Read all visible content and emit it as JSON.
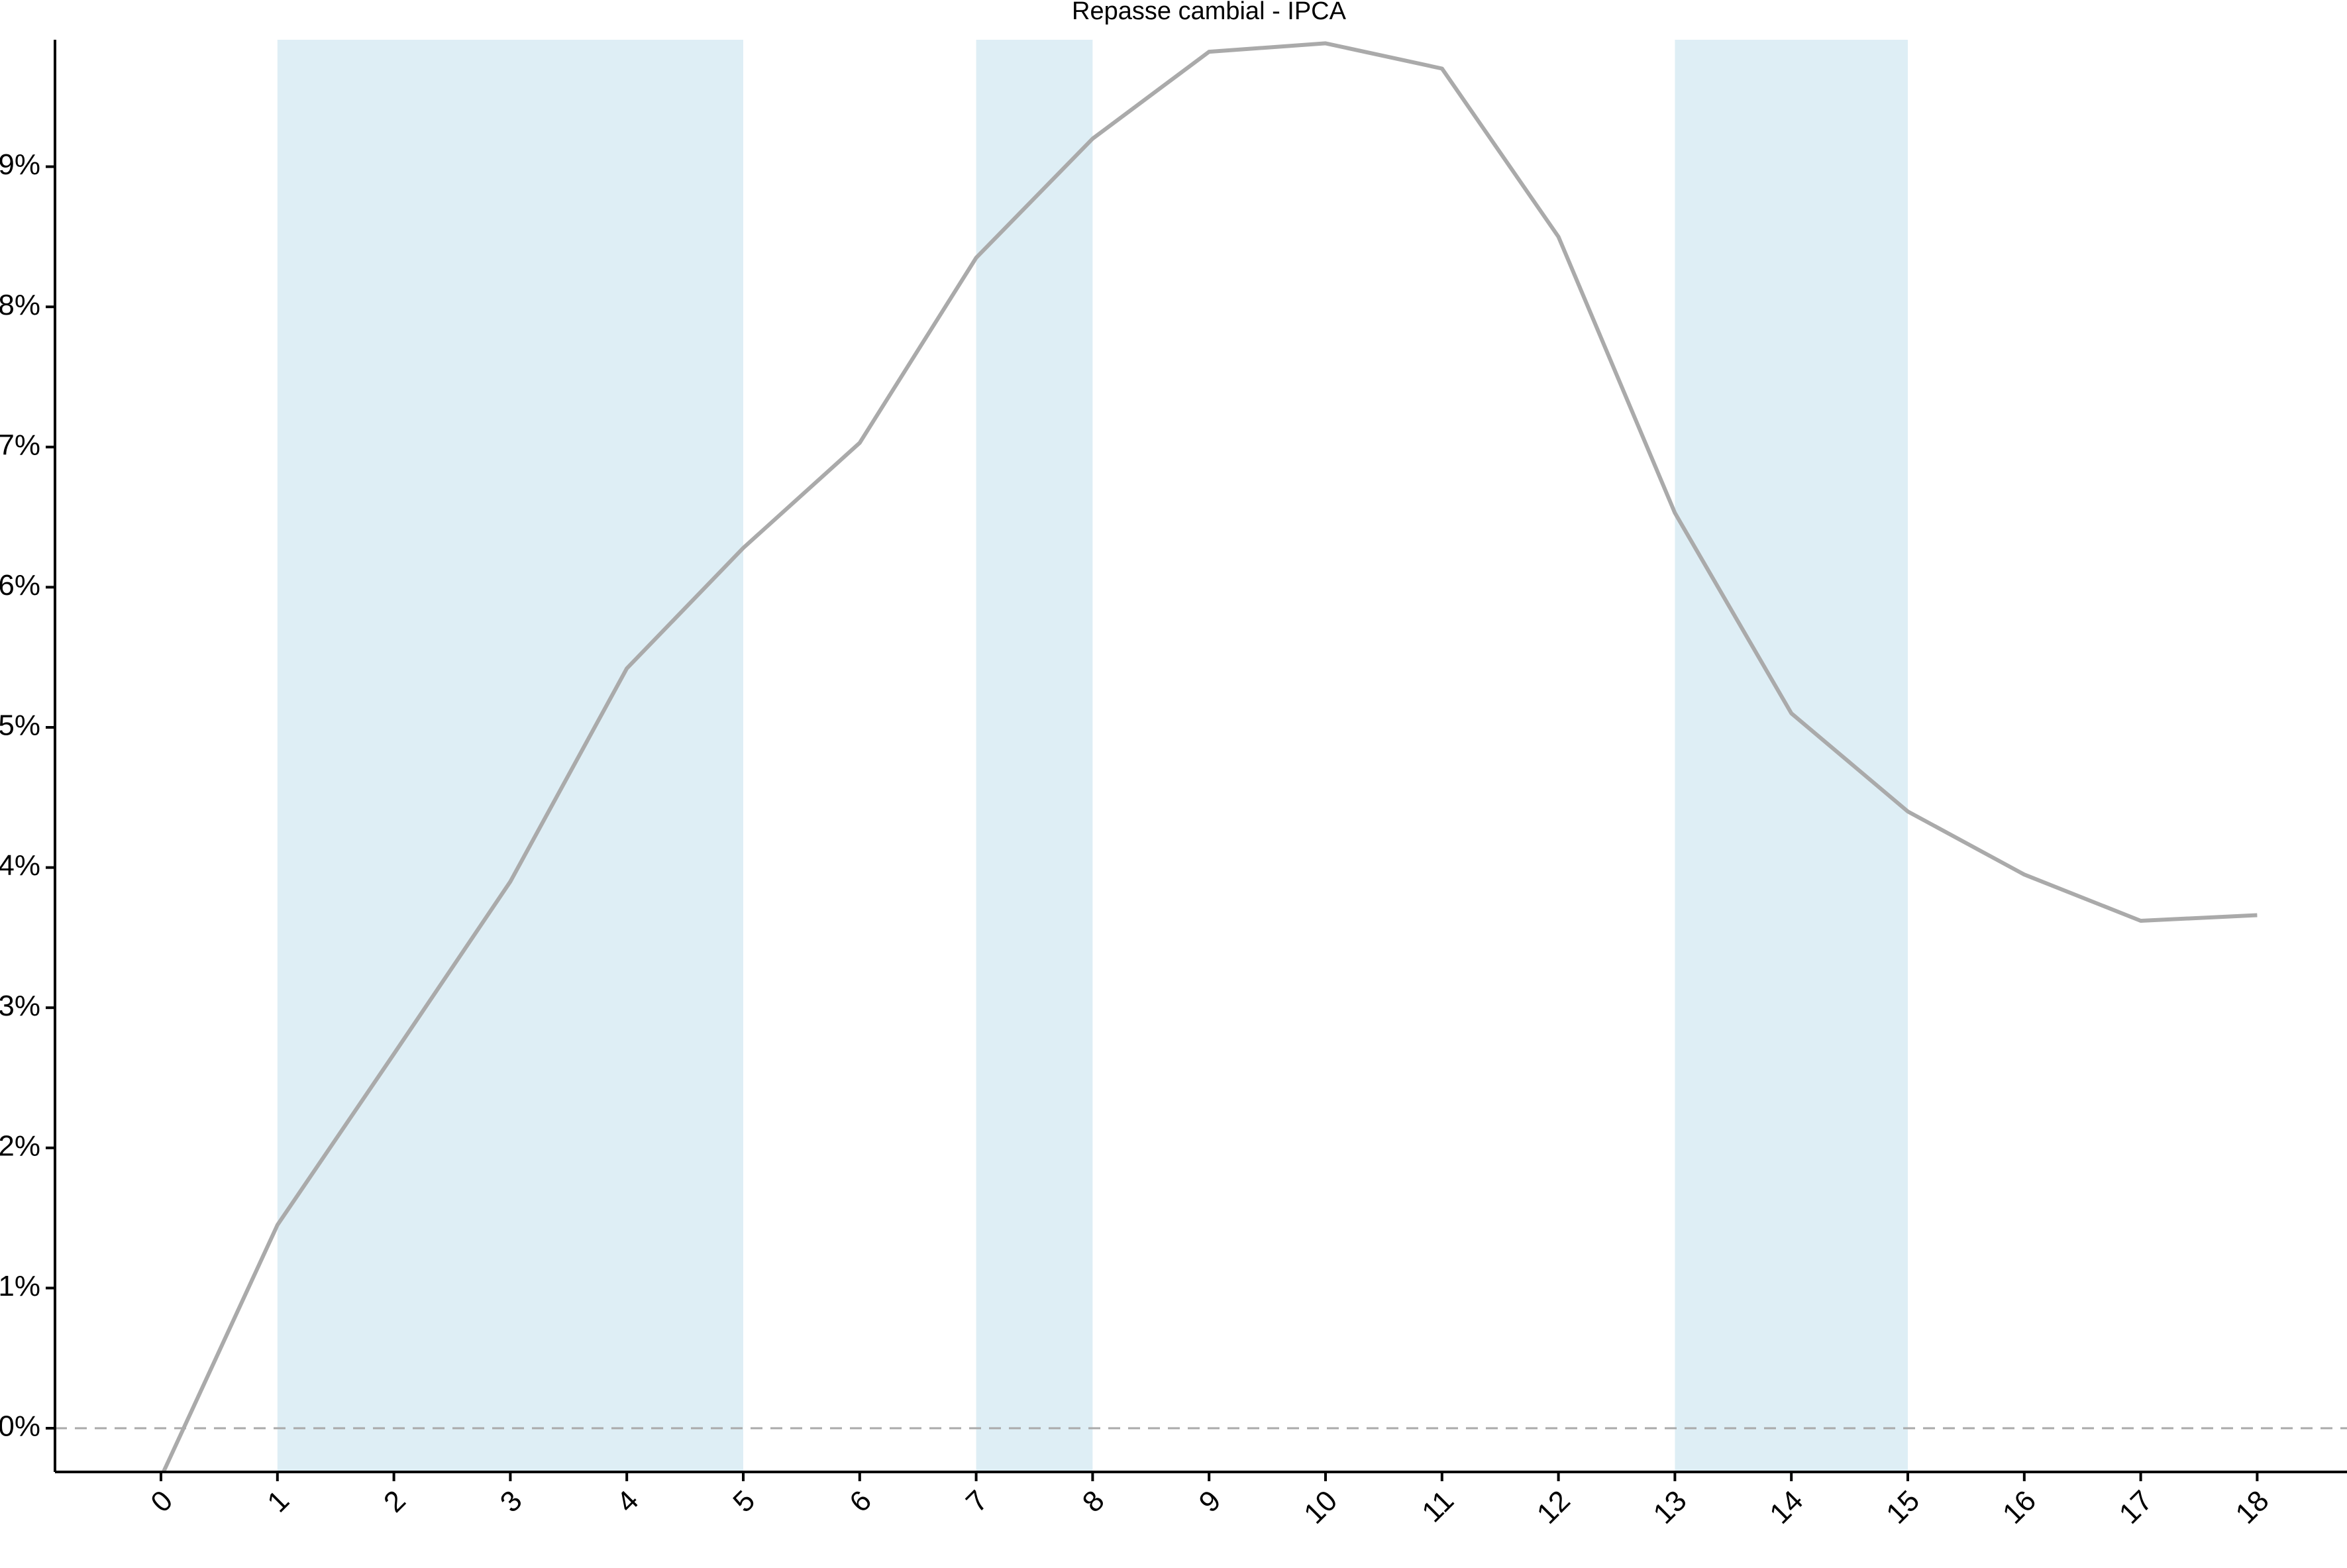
{
  "chart_data": {
    "type": "line",
    "title": "Repasse cambial -  IPCA",
    "xlabel": "",
    "ylabel": "",
    "x": [
      0,
      1,
      2,
      3,
      4,
      5,
      6,
      7,
      8,
      9,
      10,
      11,
      12,
      13,
      14,
      15,
      16,
      17,
      18
    ],
    "x_tick_labels": [
      "0",
      "1",
      "2",
      "3",
      "4",
      "5",
      "6",
      "7",
      "8",
      "9",
      "10",
      "11",
      "12",
      "13",
      "14",
      "15",
      "16",
      "17",
      "18"
    ],
    "y_tick_values": [
      0,
      1,
      2,
      3,
      4,
      5,
      6,
      7,
      8,
      9
    ],
    "y_tick_labels": [
      "0%",
      "1%",
      "2%",
      "3%",
      "4%",
      "5%",
      "6%",
      "7%",
      "8%",
      "9%"
    ],
    "series": [
      {
        "color": "#aaaaaa",
        "values": [
          -0.35,
          1.45,
          2.67,
          3.9,
          5.42,
          6.28,
          7.03,
          8.35,
          9.2,
          9.82,
          9.88,
          9.7,
          8.5,
          6.53,
          5.1,
          4.4,
          3.95,
          3.62,
          3.66
        ]
      }
    ],
    "shaded_ranges": [
      [
        1,
        5
      ],
      [
        7,
        8
      ],
      [
        13,
        15
      ]
    ],
    "shade_color": "#deeef5",
    "reference_line": {
      "y": 0,
      "style": "dashed",
      "color": "#aaaaaa"
    },
    "xlim": [
      -0.9,
      18.7
    ],
    "ylim": [
      -0.3,
      9.88
    ],
    "grid": false,
    "legend": "none"
  }
}
